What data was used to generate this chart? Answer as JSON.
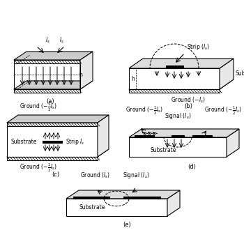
{
  "bg_color": "#ffffff",
  "line_color": "#000000",
  "fig_labels": [
    "(a)",
    "(b)",
    "(c)",
    "(d)",
    "(e)"
  ],
  "annotations": {
    "a": {
      "Is_left": "I_s",
      "Is_right": "I_s",
      "h": "h"
    },
    "b": {
      "strip": "Strip (I_s)",
      "substrate": "Substrate",
      "ground": "Ground (-I_s)",
      "h": "h"
    },
    "c": {
      "ground_top": "Ground (-½I_s)",
      "strip": "Strip I_s",
      "substrate": "Substrate",
      "ground_bot": "Ground (-½I_s)"
    },
    "d": {
      "ground_left": "Ground (-½I_s)",
      "signal": "Signal (I_s)",
      "ground_right": "Ground (-½I_s)",
      "substrate": "Substrate"
    },
    "e": {
      "ground": "Ground (I_s)",
      "signal": "Signal (I_s)",
      "substrate": "Substrate"
    }
  }
}
